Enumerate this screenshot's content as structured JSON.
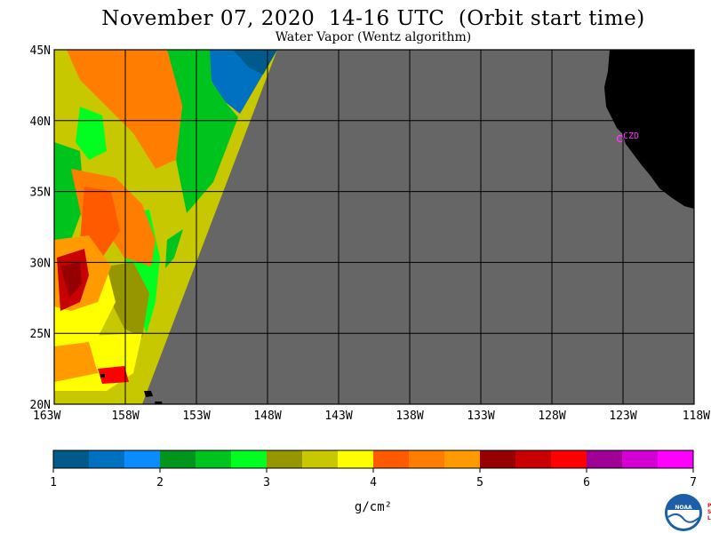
{
  "header": {
    "title": "November 07, 2020  14-16 UTC  (Orbit start time)",
    "subtitle": "Water Vapor (Wentz algorithm)"
  },
  "map": {
    "lat_labels": [
      "45N",
      "40N",
      "35N",
      "30N",
      "25N",
      "20N"
    ],
    "lon_labels": [
      "163W",
      "158W",
      "153W",
      "148W",
      "143W",
      "138W",
      "133W",
      "128W",
      "123W",
      "118W"
    ],
    "lat_range": [
      20,
      45
    ],
    "lon_range": [
      -163,
      -118
    ],
    "no_data_color": "#666666",
    "land_color": "#000000",
    "station_label": "CZD",
    "station_color": "#ff33ff"
  },
  "colorbar": {
    "range": [
      1,
      7
    ],
    "tick_labels": [
      "1",
      "2",
      "3",
      "4",
      "5",
      "6",
      "7"
    ],
    "units": "g/cm²",
    "colors": [
      "#005a8c",
      "#0070c0",
      "#0a8cff",
      "#00961e",
      "#00c41e",
      "#00ff21",
      "#969600",
      "#c8c800",
      "#ffff00",
      "#ff5a00",
      "#ff7d00",
      "#ff9b00",
      "#960000",
      "#c80000",
      "#ff0000",
      "#a00096",
      "#d200d2",
      "#ff00ff"
    ]
  },
  "logo": {
    "name": "noaa-logo",
    "text": "NOAA",
    "side_text": "PSL"
  }
}
